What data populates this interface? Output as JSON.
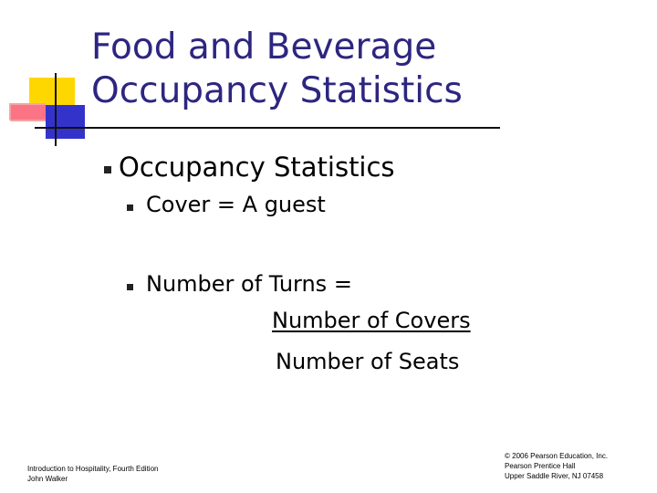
{
  "slide": {
    "title_line1": "Food and Beverage",
    "title_line2": "Occupancy Statistics",
    "bullet1": "Occupancy Statistics",
    "sub_bullet1": "Cover  =  A guest",
    "sub_bullet2": "Number of Turns =",
    "fraction_numerator": "Number of Covers",
    "fraction_denominator": "Number of Seats"
  },
  "footer": {
    "left_line1": "Introduction to Hospitality, Fourth Edition",
    "left_line2": "John Walker",
    "right_line1": "© 2006 Pearson Education, Inc.",
    "right_line2": "Pearson Prentice Hall",
    "right_line3": "Upper Saddle River, NJ 07458"
  },
  "colors": {
    "title": "#2d2680",
    "accent_yellow": "#ffd700",
    "accent_red": "#ff4d6d",
    "accent_blue": "#3333cc"
  }
}
